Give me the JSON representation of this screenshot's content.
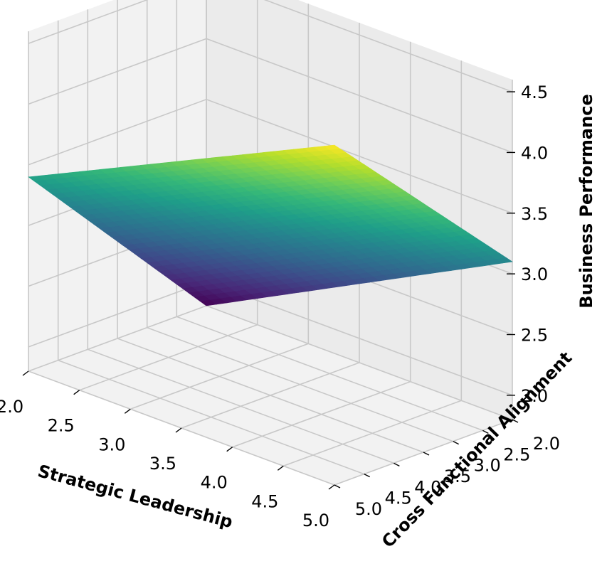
{
  "chart_data": {
    "type": "surface3d",
    "xlabel": "Strategic Leadership",
    "ylabel": "Cross Functional Alignment",
    "zlabel": "Business Performance",
    "x_ticks": [
      "2.0",
      "2.5",
      "3.0",
      "3.5",
      "4.0",
      "4.5",
      "5.0"
    ],
    "y_ticks": [
      "2.0",
      "2.5",
      "3.0",
      "3.5",
      "4.0",
      "4.5",
      "5.0"
    ],
    "z_ticks": [
      "2.0",
      "2.5",
      "3.0",
      "3.5",
      "4.0",
      "4.5"
    ],
    "xlim": [
      2.0,
      5.0
    ],
    "ylim": [
      2.0,
      5.0
    ],
    "zlim": [
      1.8,
      4.6
    ],
    "surface_corners": [
      {
        "x": 2.0,
        "y": 2.0,
        "z": 1.8
      },
      {
        "x": 5.0,
        "y": 2.0,
        "z": 3.1
      },
      {
        "x": 2.0,
        "y": 5.0,
        "z": 3.4
      },
      {
        "x": 5.0,
        "y": 5.0,
        "z": 4.6
      }
    ],
    "colormap": "viridis",
    "grid": true
  }
}
